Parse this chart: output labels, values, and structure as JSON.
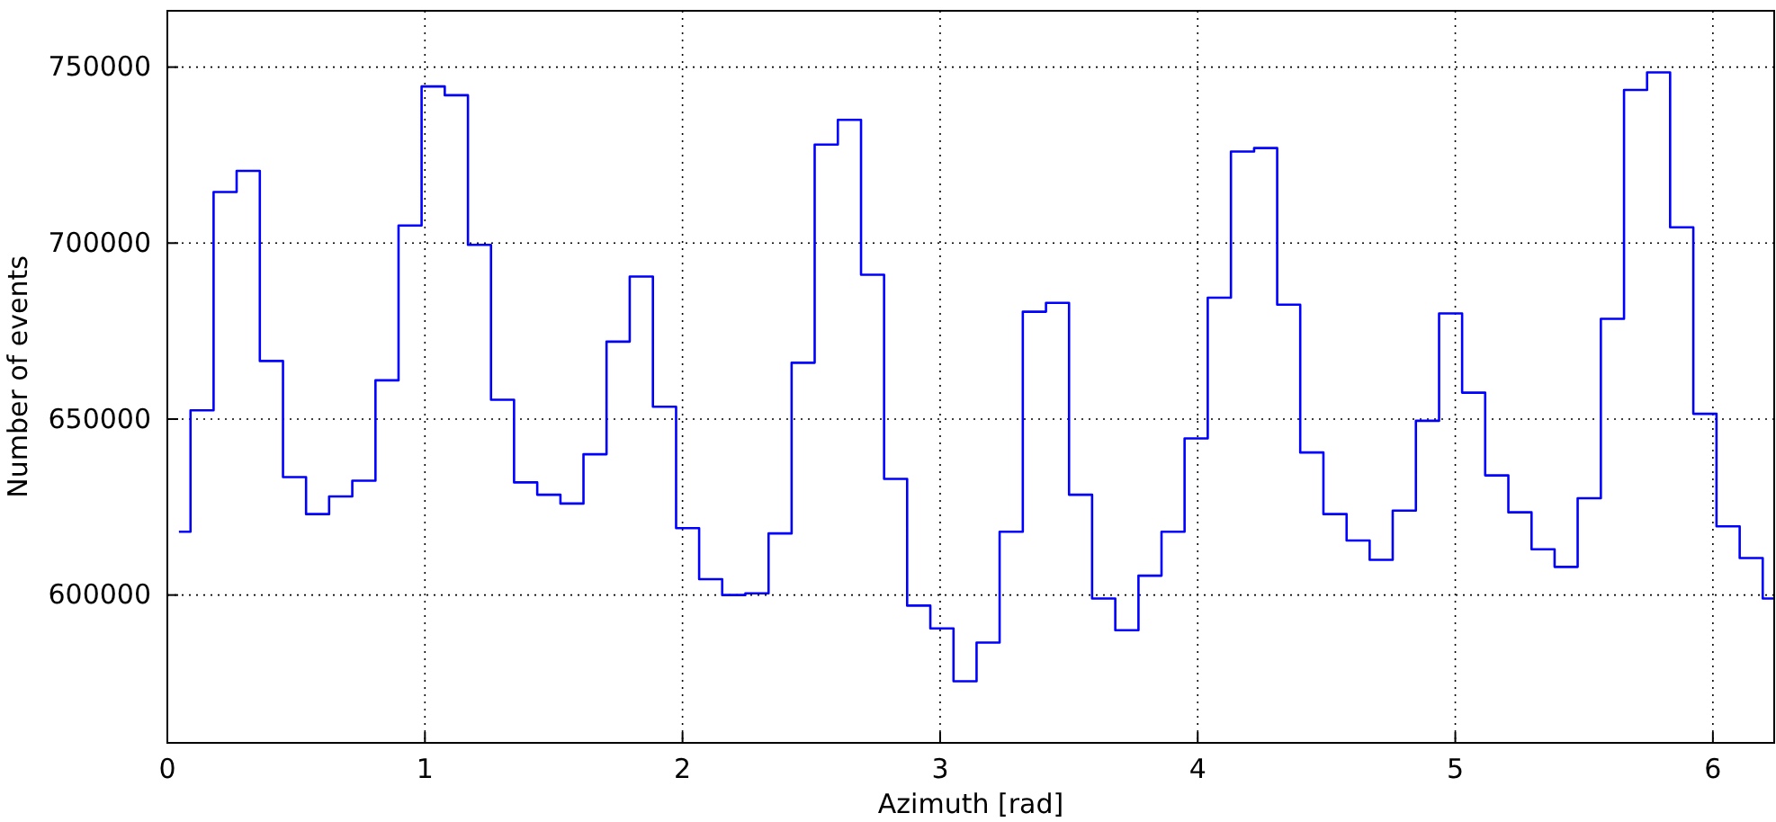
{
  "chart_data": {
    "type": "step",
    "xlabel": "Azimuth [rad]",
    "ylabel": "Number of events",
    "x": [
      0.045,
      0.135,
      0.224,
      0.314,
      0.404,
      0.494,
      0.583,
      0.673,
      0.763,
      0.853,
      0.942,
      1.032,
      1.122,
      1.212,
      1.301,
      1.391,
      1.481,
      1.571,
      1.66,
      1.75,
      1.84,
      1.93,
      2.02,
      2.109,
      2.199,
      2.289,
      2.379,
      2.468,
      2.558,
      2.648,
      2.738,
      2.827,
      2.917,
      3.007,
      3.097,
      3.186,
      3.276,
      3.366,
      3.456,
      3.545,
      3.635,
      3.725,
      3.815,
      3.904,
      3.994,
      4.084,
      4.174,
      4.264,
      4.353,
      4.443,
      4.533,
      4.623,
      4.712,
      4.802,
      4.892,
      4.982,
      5.071,
      5.161,
      5.251,
      5.341,
      5.43,
      5.52,
      5.61,
      5.7,
      5.789,
      5.879,
      5.969,
      6.059,
      6.149,
      6.238
    ],
    "series": [
      {
        "color": "#0000ff",
        "values": [
          618000,
          652500,
          714500,
          720500,
          666500,
          633500,
          623000,
          628000,
          632500,
          661000,
          705000,
          744500,
          742000,
          699500,
          655500,
          632000,
          628500,
          626000,
          640000,
          672000,
          690500,
          653500,
          619000,
          604500,
          600000,
          600500,
          617500,
          666000,
          728000,
          735000,
          691000,
          633000,
          597000,
          590500,
          575500,
          586500,
          618000,
          680500,
          683000,
          628500,
          599000,
          590000,
          605500,
          618000,
          644500,
          684500,
          726000,
          727000,
          682500,
          640500,
          623000,
          615500,
          610000,
          624000,
          649500,
          680000,
          657500,
          634000,
          623500,
          613000,
          608000,
          627500,
          678500,
          743500,
          748500,
          704500,
          651500,
          619500,
          610500,
          599000
        ]
      }
    ],
    "xlim": [
      0,
      6.238
    ],
    "ylim": [
      558000,
      766000
    ],
    "xticks": [
      0,
      1,
      2,
      3,
      4,
      5,
      6
    ],
    "yticks": [
      600000,
      650000,
      700000,
      750000
    ],
    "grid": true,
    "line_style": "solid",
    "marker": "none"
  }
}
